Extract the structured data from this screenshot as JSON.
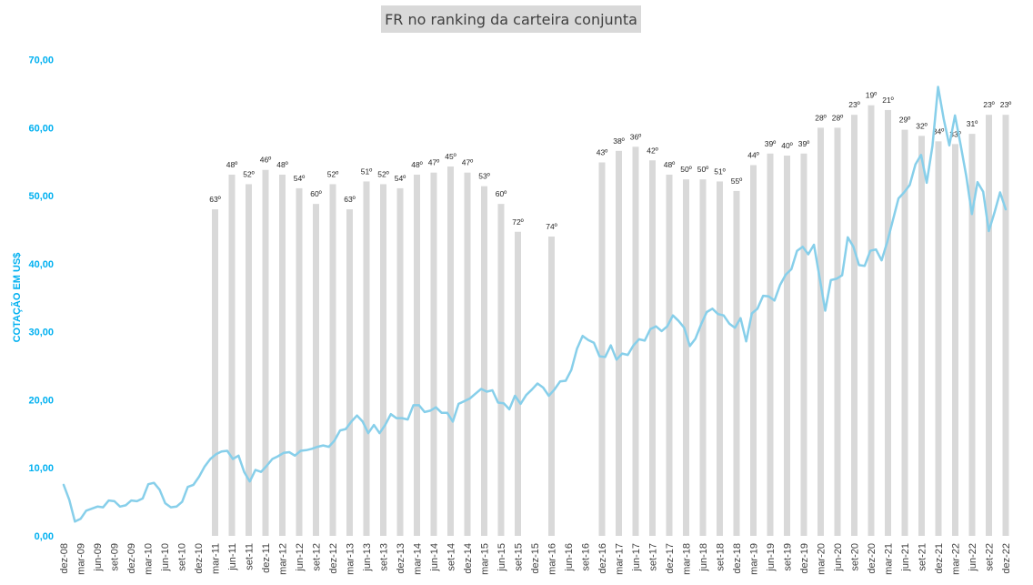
{
  "chart_data": {
    "type": "bar+line",
    "title": "FR no ranking da carteira conjunta",
    "ylabel": "COTAÇÃO EM US$",
    "ylim": [
      0,
      70
    ],
    "y_ticks": [
      "0,00",
      "10,00",
      "20,00",
      "30,00",
      "40,00",
      "50,00",
      "60,00",
      "70,00"
    ],
    "x_tick_labels": [
      "dez-08",
      "mar-09",
      "jun-09",
      "set-09",
      "dez-09",
      "mar-10",
      "jun-10",
      "set-10",
      "dez-10",
      "mar-11",
      "jun-11",
      "set-11",
      "dez-11",
      "mar-12",
      "jun-12",
      "set-12",
      "dez-12",
      "mar-13",
      "jun-13",
      "set-13",
      "dez-13",
      "mar-14",
      "jun-14",
      "set-14",
      "dez-14",
      "mar-15",
      "jun-15",
      "set-15",
      "dez-15",
      "mar-16",
      "jun-16",
      "set-16",
      "dez-16",
      "mar-17",
      "jun-17",
      "set-17",
      "dez-17",
      "mar-18",
      "jun-18",
      "set-18",
      "dez-18",
      "mar-19",
      "jun-19",
      "set-19",
      "dez-19",
      "mar-20",
      "jun-20",
      "set-20",
      "dez-20",
      "mar-21",
      "jun-21",
      "set-21",
      "dez-21",
      "mar-22",
      "jun-22",
      "set-22",
      "dez-22"
    ],
    "line_series": {
      "color": "#87cfea",
      "values": [
        7.5,
        5.3,
        2.1,
        2.5,
        3.7,
        4.0,
        4.3,
        4.2,
        5.2,
        5.1,
        4.3,
        4.5,
        5.2,
        5.1,
        5.5,
        7.6,
        7.8,
        6.8,
        4.8,
        4.2,
        4.3,
        5.0,
        7.2,
        7.5,
        8.7,
        10.2,
        11.3,
        12.0,
        12.4,
        12.5,
        11.3,
        11.8,
        9.4,
        8.0,
        9.7,
        9.4,
        10.3,
        11.3,
        11.7,
        12.2,
        12.3,
        11.8,
        12.5,
        12.6,
        12.8,
        13.1,
        13.3,
        13.1,
        14.0,
        15.5,
        15.7,
        16.8,
        17.7,
        16.8,
        15.1,
        16.3,
        15.1,
        16.3,
        17.9,
        17.3,
        17.3,
        17.1,
        19.2,
        19.2,
        18.2,
        18.4,
        18.9,
        18.1,
        18.1,
        16.8,
        19.4,
        19.8,
        20.2,
        20.9,
        21.6,
        21.2,
        21.4,
        19.6,
        19.5,
        18.6,
        20.6,
        19.4,
        20.7,
        21.5,
        22.4,
        21.8,
        20.6,
        21.5,
        22.7,
        22.8,
        24.4,
        27.5,
        29.4,
        28.8,
        28.4,
        26.4,
        26.3,
        28.0,
        25.9,
        26.8,
        26.6,
        28.0,
        28.9,
        28.7,
        30.4,
        30.8,
        30.1,
        30.8,
        32.4,
        31.6,
        30.6,
        27.9,
        29.0,
        31.1,
        32.9,
        33.4,
        32.6,
        32.4,
        31.2,
        30.6,
        32.0,
        28.6,
        32.7,
        33.4,
        35.3,
        35.2,
        34.6,
        36.9,
        38.4,
        39.2,
        41.9,
        42.5,
        41.4,
        42.8,
        38.0,
        33.1,
        37.6,
        37.8,
        38.3,
        43.9,
        42.5,
        39.8,
        39.7,
        41.9,
        42.1,
        40.5,
        43.2,
        46.4,
        49.6,
        50.5,
        51.6,
        54.6,
        56.0,
        51.9,
        57.3,
        66.0,
        61.3,
        57.4,
        61.8,
        57.5,
        52.9,
        47.3,
        52.0,
        50.6,
        44.8,
        47.5,
        50.5,
        48.0
      ]
    },
    "bars": [
      {
        "x_index": 9,
        "value": 48.0,
        "label": "63º"
      },
      {
        "x_index": 10,
        "value": 53.1,
        "label": "48º"
      },
      {
        "x_index": 11,
        "value": 51.7,
        "label": "52º"
      },
      {
        "x_index": 12,
        "value": 53.8,
        "label": "46º"
      },
      {
        "x_index": 13,
        "value": 53.1,
        "label": "48º"
      },
      {
        "x_index": 14,
        "value": 51.1,
        "label": "54º"
      },
      {
        "x_index": 15,
        "value": 48.8,
        "label": "60º"
      },
      {
        "x_index": 16,
        "value": 51.7,
        "label": "52º"
      },
      {
        "x_index": 17,
        "value": 48.0,
        "label": "63º"
      },
      {
        "x_index": 18,
        "value": 52.1,
        "label": "51º"
      },
      {
        "x_index": 19,
        "value": 51.7,
        "label": "52º"
      },
      {
        "x_index": 20,
        "value": 51.1,
        "label": "54º"
      },
      {
        "x_index": 21,
        "value": 53.1,
        "label": "48º"
      },
      {
        "x_index": 22,
        "value": 53.4,
        "label": "47º"
      },
      {
        "x_index": 23,
        "value": 54.3,
        "label": "45º"
      },
      {
        "x_index": 24,
        "value": 53.4,
        "label": "47º"
      },
      {
        "x_index": 25,
        "value": 51.4,
        "label": "53º"
      },
      {
        "x_index": 26,
        "value": 48.8,
        "label": "60º"
      },
      {
        "x_index": 27,
        "value": 44.7,
        "label": "72º"
      },
      {
        "x_index": 29,
        "value": 44.0,
        "label": "74º"
      },
      {
        "x_index": 32,
        "value": 54.9,
        "label": "43º"
      },
      {
        "x_index": 33,
        "value": 56.6,
        "label": "38º"
      },
      {
        "x_index": 34,
        "value": 57.2,
        "label": "36º"
      },
      {
        "x_index": 35,
        "value": 55.2,
        "label": "42º"
      },
      {
        "x_index": 36,
        "value": 53.1,
        "label": "48º"
      },
      {
        "x_index": 37,
        "value": 52.4,
        "label": "50º"
      },
      {
        "x_index": 38,
        "value": 52.4,
        "label": "50º"
      },
      {
        "x_index": 39,
        "value": 52.1,
        "label": "51º"
      },
      {
        "x_index": 40,
        "value": 50.7,
        "label": "55º"
      },
      {
        "x_index": 41,
        "value": 54.5,
        "label": "44º"
      },
      {
        "x_index": 42,
        "value": 56.2,
        "label": "39º"
      },
      {
        "x_index": 43,
        "value": 55.9,
        "label": "40º"
      },
      {
        "x_index": 44,
        "value": 56.2,
        "label": "39º"
      },
      {
        "x_index": 45,
        "value": 60.0,
        "label": "28º"
      },
      {
        "x_index": 46,
        "value": 60.0,
        "label": "28º"
      },
      {
        "x_index": 47,
        "value": 61.9,
        "label": "23º"
      },
      {
        "x_index": 48,
        "value": 63.3,
        "label": "19º"
      },
      {
        "x_index": 49,
        "value": 62.6,
        "label": "21º"
      },
      {
        "x_index": 50,
        "value": 59.7,
        "label": "29º"
      },
      {
        "x_index": 51,
        "value": 58.8,
        "label": "32º"
      },
      {
        "x_index": 52,
        "value": 58.0,
        "label": "34º"
      },
      {
        "x_index": 53,
        "value": 57.6,
        "label": "33º"
      },
      {
        "x_index": 54,
        "value": 59.1,
        "label": "31º"
      },
      {
        "x_index": 55,
        "value": 61.9,
        "label": "23º"
      },
      {
        "x_index": 56,
        "value": 61.9,
        "label": "23º"
      }
    ],
    "bar_color": "#d9d9d9",
    "grid": false,
    "legend": "none"
  }
}
